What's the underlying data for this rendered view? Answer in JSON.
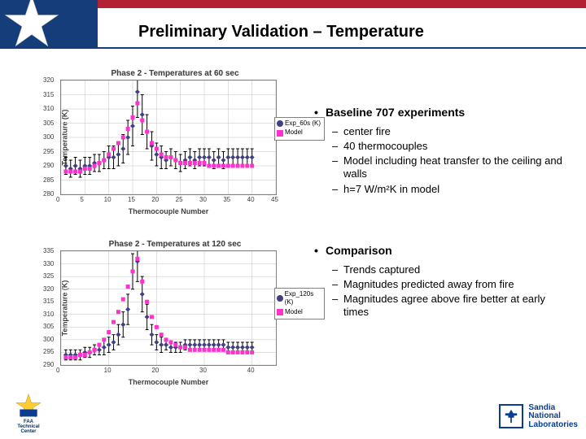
{
  "title": "Preliminary Validation – Temperature",
  "section1": {
    "heading": "Baseline 707 experiments",
    "items": [
      "center fire",
      "40 thermocouples",
      "Model including heat transfer to the ceiling and walls",
      "h=7 W/m²K in model"
    ]
  },
  "section2": {
    "heading": "Comparison",
    "items": [
      "Trends captured",
      "Magnitudes predicted away from fire",
      "Magnitudes agree above fire better at early times"
    ]
  },
  "chart1": {
    "type": "scatter",
    "title": "Phase 2 - Temperatures at 60 sec",
    "xlabel": "Thermocouple Number",
    "ylabel": "Temperature (K)",
    "xlim": [
      0,
      45
    ],
    "xtick_step": 5,
    "ylim": [
      280,
      320
    ],
    "ytick_step": 5,
    "legend": [
      "Exp_60s (K)",
      "Model"
    ],
    "series_exp": {
      "color": "#404080",
      "marker": "diamond",
      "errorbar_color": "#000000",
      "x": [
        1,
        2,
        3,
        4,
        5,
        6,
        7,
        8,
        9,
        10,
        11,
        12,
        13,
        14,
        15,
        16,
        17,
        18,
        19,
        20,
        21,
        22,
        23,
        24,
        25,
        26,
        27,
        28,
        29,
        30,
        31,
        32,
        33,
        34,
        35,
        36,
        37,
        38,
        39,
        40
      ],
      "y": [
        290,
        289,
        290,
        289,
        290,
        290,
        291,
        291,
        292,
        293,
        293,
        294,
        296,
        300,
        304,
        316,
        308,
        302,
        297,
        294,
        293,
        292,
        293,
        292,
        291,
        292,
        293,
        292,
        293,
        293,
        293,
        292,
        293,
        292,
        293,
        293,
        293,
        293,
        293,
        293
      ],
      "yerr": [
        3,
        3,
        3,
        3,
        3,
        3,
        3,
        3,
        3,
        4,
        4,
        4,
        5,
        6,
        7,
        9,
        7,
        6,
        5,
        4,
        4,
        3,
        3,
        3,
        3,
        3,
        3,
        3,
        3,
        3,
        3,
        3,
        3,
        3,
        3,
        3,
        3,
        3,
        3,
        3
      ]
    },
    "series_model": {
      "color": "#ff33cc",
      "marker": "square",
      "x": [
        1,
        2,
        3,
        4,
        5,
        6,
        7,
        8,
        9,
        10,
        11,
        12,
        13,
        14,
        15,
        16,
        17,
        18,
        19,
        20,
        21,
        22,
        23,
        24,
        25,
        26,
        27,
        28,
        29,
        30,
        31,
        32,
        33,
        34,
        35,
        36,
        37,
        38,
        39,
        40
      ],
      "y": [
        288,
        288,
        288,
        288,
        289,
        289,
        290,
        291,
        292,
        294,
        296,
        298,
        300,
        303,
        307,
        312,
        306,
        302,
        298,
        296,
        294,
        293,
        293,
        292,
        291,
        291,
        291,
        291,
        291,
        291,
        290,
        290,
        290,
        290,
        290,
        290,
        290,
        290,
        290,
        290
      ]
    }
  },
  "chart2": {
    "type": "scatter",
    "title": "Phase 2 - Temperatures at 120 sec",
    "xlabel": "Thermocouple Number",
    "ylabel": "Temperature (K)",
    "xlim": [
      0,
      45
    ],
    "xtick_step": 10,
    "ylim": [
      290,
      335
    ],
    "ytick_step": 5,
    "legend": [
      "Exp_120s (K)",
      "Model"
    ],
    "series_exp": {
      "color": "#404080",
      "marker": "diamond",
      "errorbar_color": "#000000",
      "x": [
        1,
        2,
        3,
        4,
        5,
        6,
        7,
        8,
        9,
        10,
        11,
        12,
        13,
        14,
        15,
        16,
        17,
        18,
        19,
        20,
        21,
        22,
        23,
        24,
        25,
        26,
        27,
        28,
        29,
        30,
        31,
        32,
        33,
        34,
        35,
        36,
        37,
        38,
        39,
        40
      ],
      "y": [
        294,
        294,
        294,
        294,
        295,
        295,
        296,
        296,
        297,
        298,
        299,
        302,
        306,
        312,
        327,
        331,
        318,
        309,
        302,
        299,
        298,
        298,
        297,
        297,
        297,
        298,
        298,
        298,
        298,
        298,
        298,
        298,
        298,
        298,
        297,
        297,
        297,
        297,
        297,
        297
      ],
      "yerr": [
        2,
        2,
        2,
        2,
        2,
        2,
        2,
        2,
        3,
        3,
        3,
        4,
        5,
        6,
        7,
        8,
        7,
        5,
        4,
        3,
        3,
        2,
        2,
        2,
        2,
        2,
        2,
        2,
        2,
        2,
        2,
        2,
        2,
        2,
        2,
        2,
        2,
        2,
        2,
        2
      ]
    },
    "series_model": {
      "color": "#ff33cc",
      "marker": "square",
      "x": [
        1,
        2,
        3,
        4,
        5,
        6,
        7,
        8,
        9,
        10,
        11,
        12,
        13,
        14,
        15,
        16,
        17,
        18,
        19,
        20,
        21,
        22,
        23,
        24,
        25,
        26,
        27,
        28,
        29,
        30,
        31,
        32,
        33,
        34,
        35,
        36,
        37,
        38,
        39,
        40
      ],
      "y": [
        293,
        293,
        293,
        294,
        294,
        295,
        296,
        298,
        300,
        303,
        307,
        311,
        316,
        321,
        327,
        332,
        323,
        315,
        309,
        305,
        302,
        300,
        299,
        298,
        297,
        297,
        296,
        296,
        296,
        296,
        296,
        296,
        296,
        296,
        295,
        295,
        295,
        295,
        295,
        295
      ]
    }
  },
  "logos": {
    "faa_lines": [
      "FAA",
      "Technical",
      "Center"
    ],
    "sandia_lines": [
      "Sandia",
      "National",
      "Laboratories"
    ]
  },
  "colors": {
    "background": "#ffffff",
    "title": "#000000",
    "grid": "#c0c0c0",
    "axis": "#808080",
    "exp": "#404080",
    "model": "#ff33cc",
    "flag_red": "#b22234",
    "flag_blue": "#153d7a",
    "sandia_blue": "#0a3d8f"
  }
}
